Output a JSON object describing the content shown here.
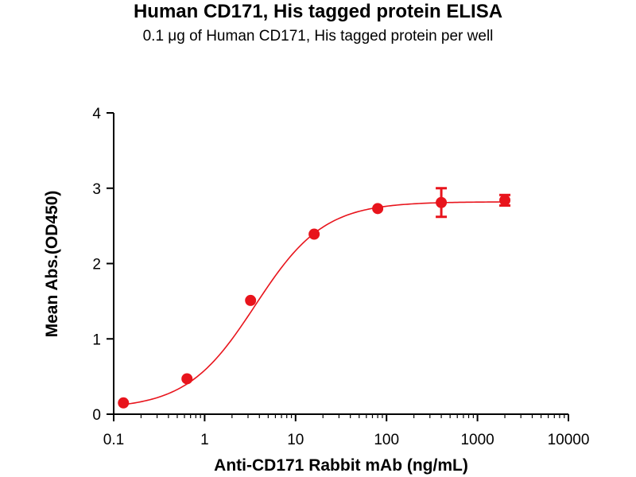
{
  "chart_data": {
    "type": "scatter",
    "title": "Human CD171, His tagged protein ELISA",
    "subtitle": "0.1 μg of Human CD171, His tagged protein per well",
    "xlabel": "Anti-CD171 Rabbit mAb (ng/mL)",
    "ylabel": "Mean Abs.(OD450)",
    "xscale": "log",
    "xlim": [
      0.1,
      10000
    ],
    "ylim": [
      0,
      4
    ],
    "x_ticks": [
      "0.1",
      "1",
      "10",
      "100",
      "1000",
      "10000"
    ],
    "y_ticks": [
      "0",
      "1",
      "2",
      "3",
      "4"
    ],
    "grid": false,
    "color": "#e8141c",
    "series": [
      {
        "points": [
          {
            "x": 0.128,
            "y": 0.15,
            "err": 0
          },
          {
            "x": 0.64,
            "y": 0.47,
            "err": 0
          },
          {
            "x": 3.2,
            "y": 1.51,
            "err": 0
          },
          {
            "x": 16,
            "y": 2.39,
            "err": 0
          },
          {
            "x": 80,
            "y": 2.73,
            "err": 0
          },
          {
            "x": 400,
            "y": 2.81,
            "err": 0.19
          },
          {
            "x": 2000,
            "y": 2.84,
            "err": 0.07
          }
        ],
        "fit": {
          "model": "4PL",
          "bottom": 0.07,
          "top": 2.82,
          "ec50": 3.6,
          "hill": 1.15
        }
      }
    ]
  }
}
